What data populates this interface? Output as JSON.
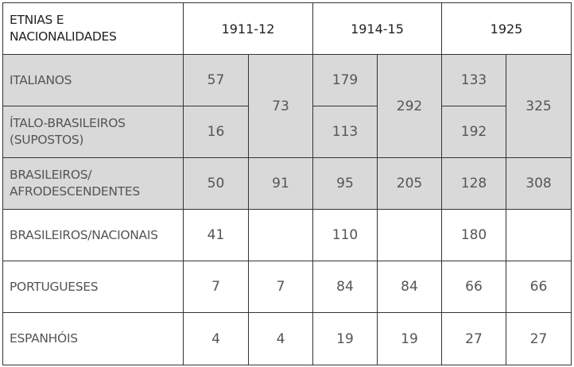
{
  "header": {
    "label": "ETNIAS E NACIONALIDADES",
    "label_line1": "ETNIAS E",
    "label_line2": "NACIONALIDADES",
    "years": [
      "1911-12",
      "1914-15",
      "1925"
    ]
  },
  "rows": {
    "italianos": {
      "line1": "ITALIANOS",
      "v": [
        "57",
        "179",
        "133"
      ]
    },
    "italo": {
      "line1": "ÍTALO-BRASILEIROS",
      "line2": "(SUPOSTOS)",
      "v": [
        "16",
        "113",
        "192"
      ]
    },
    "italo_total": [
      "73",
      "292",
      "325"
    ],
    "afro": {
      "line1": "BRASILEIROS/",
      "line2": "AFRODESCENDENTES",
      "v": [
        "50",
        "91",
        "95",
        "205",
        "128",
        "308"
      ]
    },
    "nacionais": {
      "line1": "BRASILEIROS/NACIONAIS",
      "v": [
        "41",
        "",
        "110",
        "",
        "180",
        ""
      ]
    },
    "portugueses": {
      "line1": "PORTUGUESES",
      "v": [
        "7",
        "7",
        "84",
        "84",
        "66",
        "66"
      ]
    },
    "espanhois": {
      "line1": "ESPANHÓIS",
      "v": [
        "4",
        "4",
        "19",
        "19",
        "27",
        "27"
      ]
    }
  },
  "colors": {
    "shaded_row": "#d9d9d9",
    "border": "#333333",
    "text": "#555555"
  }
}
